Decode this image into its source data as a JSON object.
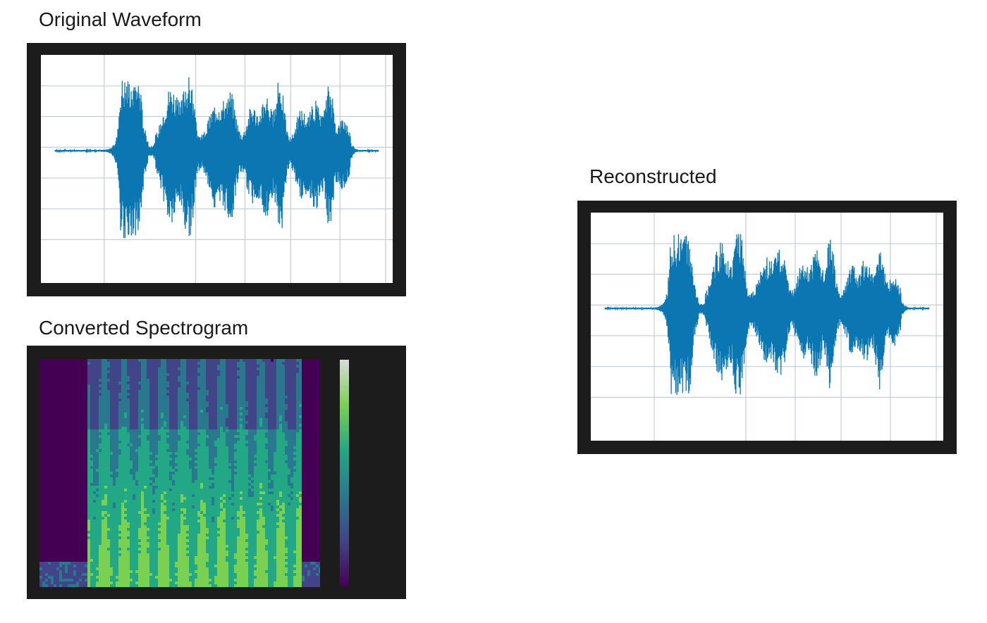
{
  "panels": {
    "original": {
      "title": "Original Waveform"
    },
    "spectrogram": {
      "title": "Converted Spectrogram"
    },
    "reconstructed": {
      "title": "Reconstructed"
    }
  },
  "colors": {
    "frame": "#1c1c1c",
    "waveform": "#0a77b3",
    "grid": "#c3ccd4",
    "colormap": [
      "#440154",
      "#414487",
      "#2a788e",
      "#22a884",
      "#7ad151",
      "#d9dbdc"
    ]
  }
}
